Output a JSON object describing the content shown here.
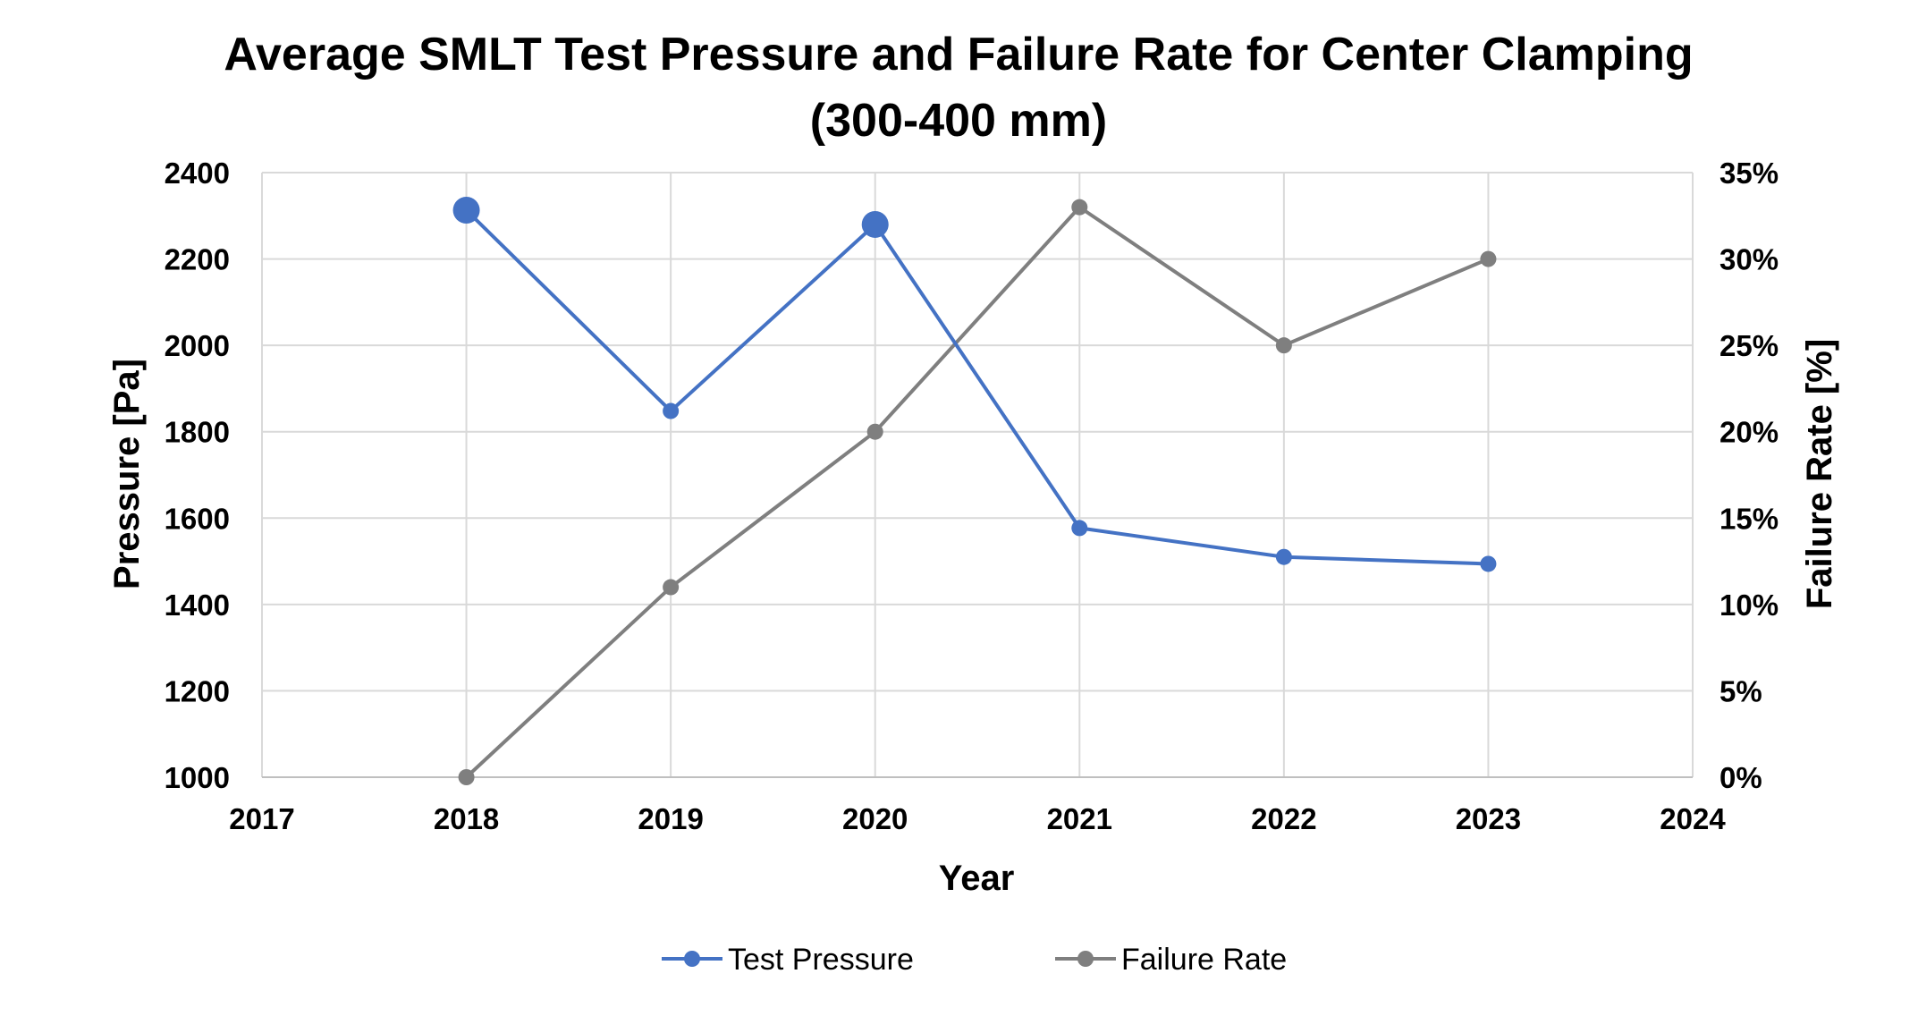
{
  "chart_data": {
    "type": "line",
    "title_line1": "Average SMLT Test Pressure and Failure Rate for Center Clamping",
    "title_line2": "(300-400 mm)",
    "xlabel": "Year",
    "ylabel_left": "Pressure [Pa]",
    "ylabel_right": "Failure Rate [%]",
    "x_ticks": [
      "2017",
      "2018",
      "2019",
      "2020",
      "2021",
      "2022",
      "2023",
      "2024"
    ],
    "y_left_ticks": [
      "1000",
      "1200",
      "1400",
      "1600",
      "1800",
      "2000",
      "2200",
      "2400"
    ],
    "y_right_ticks": [
      "0%",
      "5%",
      "10%",
      "15%",
      "20%",
      "25%",
      "30%",
      "35%"
    ],
    "xlim": [
      2017,
      2024
    ],
    "ylim_left": [
      1000,
      2400
    ],
    "ylim_right": [
      0,
      35
    ],
    "grid": true,
    "legend_position": "bottom",
    "series": [
      {
        "name": "Test Pressure",
        "axis": "left",
        "color": "#4472C4",
        "x": [
          2018,
          2019,
          2020,
          2021,
          2022,
          2023
        ],
        "y": [
          2313,
          1848,
          2280,
          1577,
          1510,
          1494
        ],
        "emphasized_points": [
          2018,
          2020
        ]
      },
      {
        "name": "Failure Rate",
        "axis": "right",
        "color": "#7F7F7F",
        "x": [
          2018,
          2019,
          2020,
          2021,
          2022,
          2023
        ],
        "y": [
          0,
          11,
          20,
          33,
          25,
          30
        ]
      }
    ]
  }
}
